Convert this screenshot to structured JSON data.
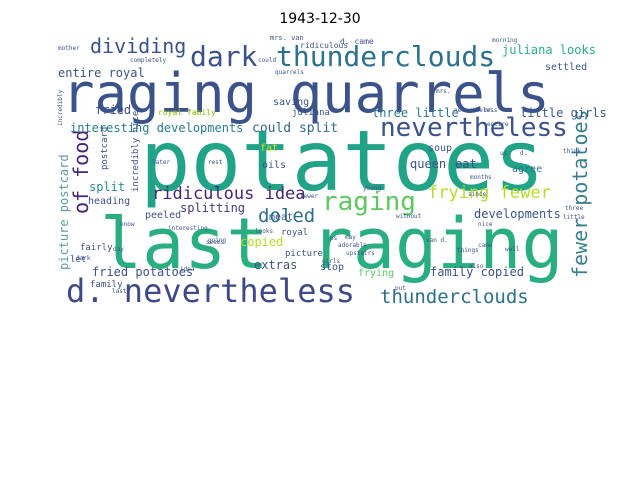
{
  "title": "1943-12-30",
  "words": [
    {
      "text": "potatoes",
      "color": "#20a386"
    },
    {
      "text": "last raging",
      "color": "#29af7f"
    },
    {
      "text": "raging quarrels",
      "color": "#3b528b"
    },
    {
      "text": "d. nevertheless",
      "color": "#3e4989"
    },
    {
      "text": "dark",
      "color": "#3b528b"
    },
    {
      "text": "thunderclouds",
      "color": "#2c718e"
    },
    {
      "text": "nevertheless",
      "color": "#3b528b"
    },
    {
      "text": "raging",
      "color": "#5ec962"
    },
    {
      "text": "dividing",
      "color": "#3b528b"
    },
    {
      "text": "of food",
      "color": "#482677"
    },
    {
      "text": "frying fewer",
      "color": "#b5de2b"
    },
    {
      "text": "ridiculous idea",
      "color": "#482677"
    },
    {
      "text": "doled",
      "color": "#2c718e"
    },
    {
      "text": "thunderclouds",
      "color": "#2d708e"
    },
    {
      "text": "fewer potatoes",
      "color": "#3b7f8e"
    },
    {
      "text": "entire royal",
      "color": "#3b528b"
    },
    {
      "text": "interesting developments",
      "color": "#287d8e"
    },
    {
      "text": "could split",
      "color": "#31688e"
    },
    {
      "text": "fried",
      "color": "#3b528b"
    },
    {
      "text": "three little",
      "color": "#2a788e"
    },
    {
      "text": "juliana looks",
      "color": "#29af7f"
    },
    {
      "text": "splitting",
      "color": "#453781"
    },
    {
      "text": "developments",
      "color": "#39558c"
    },
    {
      "text": "fried potatoes",
      "color": "#3b528b"
    },
    {
      "text": "family copied",
      "color": "#3b528b"
    },
    {
      "text": "picture postcard",
      "color": "#5e9aa8"
    },
    {
      "text": "split",
      "color": "#2c8a8d"
    },
    {
      "text": "extras",
      "color": "#3b528b"
    },
    {
      "text": "copied",
      "color": "#b5de2b"
    },
    {
      "text": "royal family",
      "color": "#84b800"
    },
    {
      "text": "saving",
      "color": "#3b528b"
    },
    {
      "text": "juliana",
      "color": "#3b528b"
    },
    {
      "text": "queen",
      "color": "#3b528b"
    },
    {
      "text": "eat",
      "color": "#3b528b"
    },
    {
      "text": "agree",
      "color": "#2c718e"
    },
    {
      "text": "little girls",
      "color": "#3b528b"
    },
    {
      "text": "settled",
      "color": "#3b528b"
    },
    {
      "text": "soup",
      "color": "#3b528b"
    },
    {
      "text": "oils",
      "color": "#3b528b"
    },
    {
      "text": "meat",
      "color": "#3b528b"
    },
    {
      "text": "peeled",
      "color": "#3b528b"
    },
    {
      "text": "heading",
      "color": "#3b528b"
    },
    {
      "text": "fat",
      "color": "#d8e219"
    },
    {
      "text": "stop",
      "color": "#3b528b"
    },
    {
      "text": "frying",
      "color": "#5ec962"
    },
    {
      "text": "postcard",
      "color": "#3b528b"
    },
    {
      "text": "incredibly nice",
      "color": "#3b528b"
    },
    {
      "text": "royal",
      "color": "#3b528b"
    },
    {
      "text": "picture",
      "color": "#3b528b"
    },
    {
      "text": "fairly",
      "color": "#3b528b"
    },
    {
      "text": "let",
      "color": "#3b528b"
    },
    {
      "text": "family",
      "color": "#3b528b"
    },
    {
      "text": "d. came",
      "color": "#3b528b"
    },
    {
      "text": "ridiculous",
      "color": "#3b528b"
    },
    {
      "text": "mrs. van",
      "color": "#3b528b"
    },
    {
      "text": "morning",
      "color": "#3b528b"
    },
    {
      "text": "mother",
      "color": "#3b528b"
    },
    {
      "text": "quarrels",
      "color": "#3b528b"
    },
    {
      "text": "could",
      "color": "#3b528b"
    },
    {
      "text": "completely",
      "color": "#3b528b"
    },
    {
      "text": "incredibly",
      "color": "#3b528b"
    },
    {
      "text": "mrs.",
      "color": "#3b528b"
    },
    {
      "text": "mr.",
      "color": "#3b528b"
    },
    {
      "text": "entire",
      "color": "#3b528b"
    },
    {
      "text": "us",
      "color": "#3b528b"
    },
    {
      "text": "d.",
      "color": "#3b528b"
    },
    {
      "text": "think",
      "color": "#3b528b"
    },
    {
      "text": "three",
      "color": "#3b528b"
    },
    {
      "text": "later",
      "color": "#3b528b"
    },
    {
      "text": "rest",
      "color": "#3b528b"
    },
    {
      "text": "going",
      "color": "#3b528b"
    },
    {
      "text": "young",
      "color": "#3b528b"
    },
    {
      "text": "without",
      "color": "#3b528b"
    },
    {
      "text": "months",
      "color": "#3b528b"
    },
    {
      "text": "since",
      "color": "#3b528b"
    },
    {
      "text": "nice",
      "color": "#3b528b"
    },
    {
      "text": "van d.",
      "color": "#3b528b"
    },
    {
      "text": "may",
      "color": "#3b528b"
    },
    {
      "text": "ps",
      "color": "#3b528b"
    },
    {
      "text": "adorable",
      "color": "#3b528b"
    },
    {
      "text": "fewer",
      "color": "#3b528b"
    },
    {
      "text": "looks",
      "color": "#3b528b"
    },
    {
      "text": "girls",
      "color": "#3b528b"
    },
    {
      "text": "upstairs",
      "color": "#3b528b"
    },
    {
      "text": "put",
      "color": "#3b528b"
    },
    {
      "text": "things",
      "color": "#3b528b"
    },
    {
      "text": "came",
      "color": "#3b528b"
    },
    {
      "text": "also",
      "color": "#3b528b"
    },
    {
      "text": "well",
      "color": "#3b528b"
    },
    {
      "text": "little",
      "color": "#3b528b"
    },
    {
      "text": "dark",
      "color": "#3b528b"
    },
    {
      "text": "know",
      "color": "#3b528b"
    },
    {
      "text": "seems",
      "color": "#3b528b"
    },
    {
      "text": "idea",
      "color": "#3b528b"
    },
    {
      "text": "day",
      "color": "#3b528b"
    },
    {
      "text": "last",
      "color": "#3b528b"
    },
    {
      "text": "interesting",
      "color": "#3b528b"
    },
    {
      "text": "nevertheless",
      "color": "#3b528b"
    }
  ]
}
